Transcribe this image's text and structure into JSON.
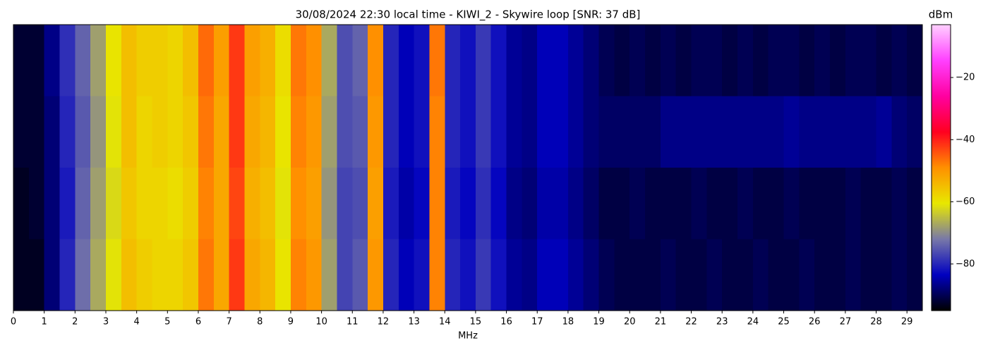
{
  "chart_data": {
    "type": "heatmap",
    "title": "30/08/2024 22:30 local time - KIWI_2 - Skywire loop [SNR: 37 dB]",
    "xlabel": "MHz",
    "colorbar_label": "dBm",
    "x": [
      0,
      0.5,
      1,
      1.5,
      2,
      2.5,
      3,
      3.5,
      4,
      4.5,
      5,
      5.5,
      6,
      6.5,
      7,
      7.5,
      8,
      8.5,
      9,
      9.5,
      10,
      10.5,
      11,
      11.5,
      12,
      12.5,
      13,
      13.5,
      14,
      14.5,
      15,
      15.5,
      16,
      16.5,
      17,
      17.5,
      18,
      18.5,
      19,
      19.5,
      20,
      20.5,
      21,
      21.5,
      22,
      22.5,
      23,
      23.5,
      24,
      24.5,
      25,
      25.5,
      26,
      26.5,
      27,
      27.5,
      28,
      28.5,
      29,
      29.5
    ],
    "z": [
      [
        -92,
        -92,
        -87,
        -79,
        -74,
        -68,
        -60,
        -55,
        -57,
        -57,
        -58,
        -55,
        -46,
        -51,
        -42,
        -51,
        -53,
        -59,
        -47,
        -49,
        -67,
        -76,
        -74,
        -49,
        -80,
        -84,
        -82,
        -47,
        -80,
        -82,
        -78,
        -82,
        -86,
        -87,
        -84,
        -84,
        -86,
        -88,
        -90,
        -91,
        -90,
        -91,
        -90,
        -91,
        -90,
        -90,
        -91,
        -90,
        -91,
        -90,
        -90,
        -91,
        -90,
        -91,
        -90,
        -90,
        -91,
        -90,
        -91
      ],
      [
        -92,
        -92,
        -88,
        -80,
        -75,
        -69,
        -61,
        -55,
        -58,
        -57,
        -58,
        -56,
        -47,
        -52,
        -42,
        -52,
        -54,
        -60,
        -48,
        -50,
        -68,
        -76,
        -75,
        -50,
        -80,
        -84,
        -82,
        -48,
        -80,
        -82,
        -78,
        -82,
        -86,
        -87,
        -84,
        -84,
        -86,
        -88,
        -89,
        -89,
        -89,
        -89,
        -87,
        -87,
        -87,
        -87,
        -87,
        -87,
        -87,
        -87,
        -86,
        -87,
        -87,
        -87,
        -87,
        -87,
        -86,
        -88,
        -89
      ],
      [
        -93,
        -92,
        -88,
        -81,
        -74,
        -68,
        -62,
        -56,
        -58,
        -58,
        -59,
        -57,
        -48,
        -52,
        -43,
        -53,
        -55,
        -61,
        -49,
        -51,
        -69,
        -77,
        -76,
        -51,
        -81,
        -85,
        -83,
        -48,
        -81,
        -83,
        -79,
        -83,
        -87,
        -88,
        -85,
        -85,
        -87,
        -89,
        -91,
        -91,
        -90,
        -91,
        -91,
        -91,
        -90,
        -91,
        -91,
        -90,
        -91,
        -91,
        -90,
        -91,
        -91,
        -91,
        -90,
        -91,
        -91,
        -90,
        -91
      ],
      [
        -93,
        -93,
        -88,
        -80,
        -73,
        -67,
        -61,
        -55,
        -57,
        -58,
        -58,
        -56,
        -47,
        -52,
        -42,
        -52,
        -54,
        -60,
        -48,
        -50,
        -68,
        -77,
        -75,
        -50,
        -80,
        -84,
        -82,
        -48,
        -80,
        -82,
        -78,
        -82,
        -86,
        -87,
        -84,
        -84,
        -86,
        -88,
        -90,
        -91,
        -91,
        -91,
        -90,
        -91,
        -91,
        -90,
        -91,
        -91,
        -90,
        -91,
        -91,
        -90,
        -91,
        -91,
        -90,
        -91,
        -91,
        -90,
        -91
      ]
    ],
    "xlim": [
      0,
      29.5
    ],
    "xticks": [
      0,
      1,
      2,
      3,
      4,
      5,
      6,
      7,
      8,
      9,
      10,
      11,
      12,
      13,
      14,
      15,
      16,
      17,
      18,
      19,
      20,
      21,
      22,
      23,
      24,
      25,
      26,
      27,
      28,
      29
    ],
    "zlim": [
      -95,
      -3
    ],
    "zticks": [
      {
        "value": -20,
        "label": "−20"
      },
      {
        "value": -40,
        "label": "−40"
      },
      {
        "value": -60,
        "label": "−60"
      },
      {
        "value": -80,
        "label": "−80"
      }
    ],
    "colormap": [
      "#000000",
      "#0000c0",
      "#7878a8",
      "#e8e800",
      "#ff9000",
      "#ff0020",
      "#ff00a0",
      "#ff40ff",
      "#ffd0ff"
    ]
  }
}
